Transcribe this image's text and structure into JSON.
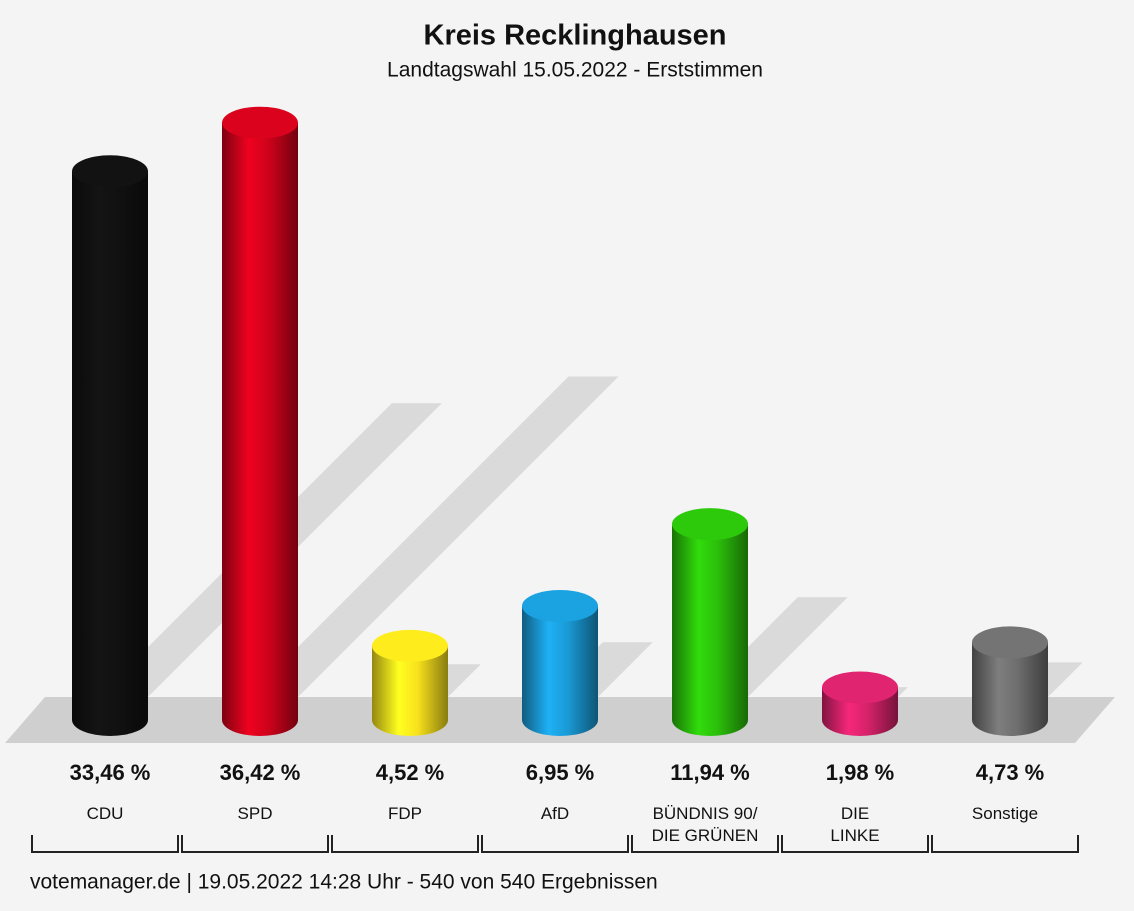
{
  "chart_data": {
    "type": "bar",
    "title": "Kreis Recklinghausen",
    "subtitle": "Landtagswahl 15.05.2022  - Erststimmen",
    "categories": [
      "CDU",
      "SPD",
      "FDP",
      "AfD",
      "BÜNDNIS 90/\nDIE GRÜNEN",
      "DIE\nLINKE",
      "Sonstige"
    ],
    "values": [
      33.46,
      36.42,
      4.52,
      6.95,
      11.94,
      1.98,
      4.73
    ],
    "value_labels": [
      "33,46 %",
      "36,42 %",
      "4,52 %",
      "6,95 %",
      "11,94 %",
      "1,98 %",
      "4,73 %"
    ],
    "colors": [
      "#111111",
      "#d0021b",
      "#f8e11c",
      "#1a9ad6",
      "#2bbf0a",
      "#d6226a",
      "#6e6e6e"
    ],
    "footer": "votemanager.de | 19.05.2022 14:28 Uhr - 540 von 540 Ergebnissen"
  }
}
